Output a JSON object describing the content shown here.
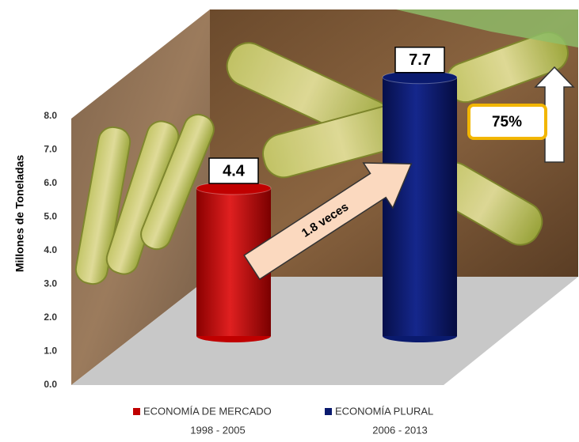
{
  "chart_data": {
    "type": "bar",
    "y_label": "Millones de Toneladas",
    "categories": [
      "1998 - 2005",
      "2006 - 2013"
    ],
    "series": [
      {
        "name": "ECONOMÍA DE MERCADO",
        "color": "#c00000",
        "values": [
          4.4,
          null
        ]
      },
      {
        "name": "ECONOMÍA PLURAL",
        "color": "#0a1a6e",
        "values": [
          null,
          7.7
        ]
      }
    ],
    "ylim": [
      0,
      8
    ],
    "yticks": [
      {
        "value": 0,
        "label": "0.0"
      },
      {
        "value": 1,
        "label": "1.0"
      },
      {
        "value": 2,
        "label": "2.0"
      },
      {
        "value": 3,
        "label": "3.0"
      },
      {
        "value": 4,
        "label": "4.0"
      },
      {
        "value": 5,
        "label": "5.0"
      },
      {
        "value": 6,
        "label": "6.0"
      },
      {
        "value": 7,
        "label": "7.0"
      },
      {
        "value": 8,
        "label": "8.0"
      }
    ],
    "annotations": [
      "1.8 veces",
      "75%"
    ]
  }
}
